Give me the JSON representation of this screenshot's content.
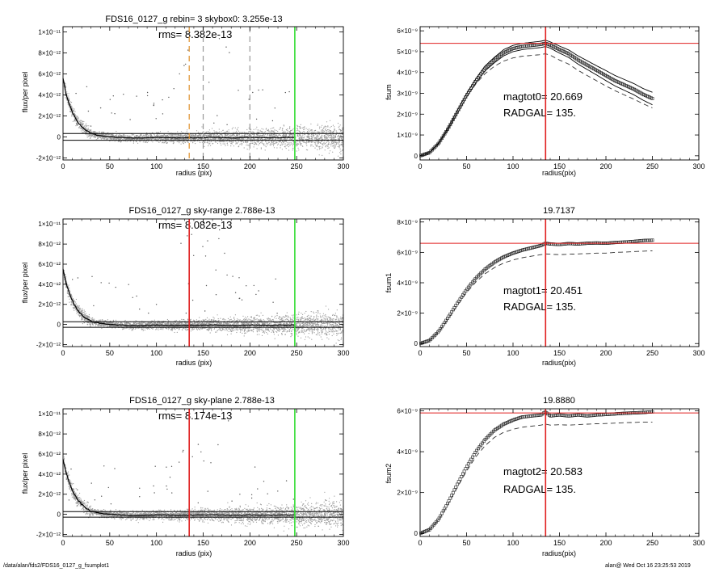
{
  "footer": {
    "path": "/data/alan/fds2/FDS16_0127_g_fsumplot1",
    "stamp": "alan@  Wed Oct 16 23:25:53 2019"
  },
  "chart_data": [
    {
      "id": "profile-1",
      "type": "scatter",
      "title": "FDS16_0127_g rebin= 3    skybox0:  3.255e-13",
      "annotation": "rms= 8.382e-13",
      "xlabel": "radius (pix)",
      "ylabel": "flux/per pixel",
      "xlim": [
        0,
        300
      ],
      "ylim": [
        -2.2e-12,
        1.05e-11
      ],
      "xticks": [
        0,
        50,
        100,
        150,
        200,
        250,
        300
      ],
      "xtick_labels": [
        "0",
        "50",
        "100",
        "150",
        "200",
        "250",
        "300"
      ],
      "yticks": [
        -2e-12,
        0,
        2e-12,
        4e-12,
        6e-12,
        8e-12,
        1e-11
      ],
      "ytick_labels": [
        "-2×10⁻¹²",
        "0",
        "2×10⁻¹²",
        "4×10⁻¹²",
        "6×10⁻¹²",
        "8×10⁻¹²",
        "1×10⁻¹¹"
      ],
      "hlines": [
        {
          "y": 3.255e-13,
          "color": "#000000"
        },
        {
          "y": -3.255e-13,
          "color": "#000000"
        }
      ],
      "vlines": [
        {
          "x": 135,
          "color": "#e0902a",
          "dash": "long"
        },
        {
          "x": 150,
          "color": "#999999",
          "dash": "long"
        },
        {
          "x": 200,
          "color": "#999999",
          "dash": "long"
        },
        {
          "x": 248,
          "color": "#33dd33",
          "dash": "none"
        }
      ],
      "profile": {
        "x": [
          0,
          3,
          6,
          9,
          12,
          15,
          18,
          21,
          24,
          27,
          30,
          35,
          40,
          45,
          50,
          60,
          70,
          80,
          90,
          100,
          120,
          140,
          160,
          180,
          200,
          220,
          248
        ],
        "y": [
          5.6e-12,
          4.2e-12,
          3.3e-12,
          2.6e-12,
          2e-12,
          1.5e-12,
          1.2e-12,
          9e-13,
          6e-13,
          5e-13,
          3e-13,
          2e-13,
          1e-13,
          5e-14,
          0,
          -5e-14,
          -1e-13,
          -1.2e-13,
          -8e-14,
          -5e-14,
          -1e-13,
          -8e-14,
          -5e-14,
          -1e-13,
          -6e-14,
          -8e-14,
          -5e-14
        ]
      },
      "scatter": {
        "count": 3500,
        "outliers": 45,
        "seed": 11,
        "color": "#9a9a9a"
      }
    },
    {
      "id": "fsum-0",
      "type": "line",
      "title": "",
      "annotation_lines": [
        "magtot0=  20.669",
        "RADGAL=    135."
      ],
      "xlabel": "radius(pix)",
      "ylabel": "fsum",
      "xlim": [
        0,
        300
      ],
      "ylim": [
        -2e-10,
        6.2e-09
      ],
      "xticks": [
        0,
        50,
        100,
        150,
        200,
        250,
        300
      ],
      "xtick_labels": [
        "0",
        "50",
        "100",
        "150",
        "200",
        "250",
        "300"
      ],
      "yticks": [
        0,
        1e-09,
        2e-09,
        3e-09,
        4e-09,
        5e-09,
        6e-09
      ],
      "ytick_labels": [
        "0",
        "1×10⁻⁹",
        "2×10⁻⁹",
        "3×10⁻⁹",
        "4×10⁻⁹",
        "5×10⁻⁹",
        "6×10⁻⁹"
      ],
      "hlines": [
        {
          "y": 5.4e-09,
          "color": "#e02020"
        }
      ],
      "vlines": [
        {
          "x": 135,
          "color": "#e02020",
          "dash": "none"
        }
      ],
      "series": [
        {
          "style": "markers",
          "x": [
            0,
            10,
            20,
            30,
            40,
            50,
            60,
            70,
            80,
            90,
            100,
            110,
            120,
            130,
            135,
            140,
            150,
            160,
            170,
            180,
            190,
            200,
            210,
            220,
            230,
            240,
            250
          ],
          "y": [
            0,
            1.5e-10,
            6e-10,
            1.3e-09,
            2.1e-09,
            2.9e-09,
            3.6e-09,
            4.2e-09,
            4.6e-09,
            4.95e-09,
            5.15e-09,
            5.25e-09,
            5.3e-09,
            5.35e-09,
            5.4e-09,
            5.32e-09,
            5.1e-09,
            4.9e-09,
            4.6e-09,
            4.35e-09,
            4.1e-09,
            3.85e-09,
            3.6e-09,
            3.4e-09,
            3.2e-09,
            2.95e-09,
            2.75e-09
          ]
        },
        {
          "style": "solid",
          "x": [
            0,
            10,
            20,
            30,
            40,
            50,
            60,
            70,
            80,
            90,
            100,
            110,
            120,
            130,
            135,
            140,
            150,
            160,
            170,
            180,
            190,
            200,
            210,
            220,
            230,
            240,
            250
          ],
          "y": [
            0,
            1.6e-10,
            6.3e-10,
            1.35e-09,
            2.17e-09,
            2.98e-09,
            3.7e-09,
            4.32e-09,
            4.73e-09,
            5.1e-09,
            5.3e-09,
            5.4e-09,
            5.45e-09,
            5.5e-09,
            5.55e-09,
            5.47e-09,
            5.27e-09,
            5.08e-09,
            4.8e-09,
            4.56e-09,
            4.32e-09,
            4.09e-09,
            3.85e-09,
            3.66e-09,
            3.47e-09,
            3.23e-09,
            3.05e-09
          ]
        },
        {
          "style": "solid",
          "x": [
            0,
            10,
            20,
            30,
            40,
            50,
            60,
            70,
            80,
            90,
            100,
            110,
            120,
            130,
            135,
            140,
            150,
            160,
            170,
            180,
            190,
            200,
            210,
            220,
            230,
            240,
            250
          ],
          "y": [
            0,
            1.4e-10,
            5.7e-10,
            1.25e-09,
            2.03e-09,
            2.82e-09,
            3.5e-09,
            4.08e-09,
            4.47e-09,
            4.8e-09,
            5e-09,
            5.1e-09,
            5.15e-09,
            5.2e-09,
            5.25e-09,
            5.17e-09,
            4.93e-09,
            4.72e-09,
            4.4e-09,
            4.14e-09,
            3.88e-09,
            3.61e-09,
            3.35e-09,
            3.14e-09,
            2.93e-09,
            2.67e-09,
            2.45e-09
          ]
        },
        {
          "style": "dashed",
          "x": [
            0,
            10,
            20,
            30,
            40,
            50,
            60,
            70,
            80,
            90,
            100,
            110,
            120,
            130,
            135,
            140,
            150,
            160,
            170,
            180,
            190,
            200,
            210,
            220,
            230,
            240,
            250
          ],
          "y": [
            0,
            1.5e-10,
            5.9e-10,
            1.28e-09,
            2.05e-09,
            2.82e-09,
            3.45e-09,
            3.95e-09,
            4.3e-09,
            4.55e-09,
            4.7e-09,
            4.78e-09,
            4.82e-09,
            4.86e-09,
            4.9e-09,
            4.83e-09,
            4.6e-09,
            4.4e-09,
            4.1e-09,
            3.85e-09,
            3.6e-09,
            3.35e-09,
            3.12e-09,
            2.92e-09,
            2.72e-09,
            2.5e-09,
            2.3e-09
          ]
        }
      ]
    },
    {
      "id": "profile-2",
      "type": "scatter",
      "title": "FDS16_0127_g sky-range  2.788e-13",
      "annotation": "rms= 8.082e-13",
      "xlabel": "radius (pix)",
      "ylabel": "flux/per pixel",
      "xlim": [
        0,
        300
      ],
      "ylim": [
        -2.2e-12,
        1.05e-11
      ],
      "xticks": [
        0,
        50,
        100,
        150,
        200,
        250,
        300
      ],
      "xtick_labels": [
        "0",
        "50",
        "100",
        "150",
        "200",
        "250",
        "300"
      ],
      "yticks": [
        -2e-12,
        0,
        2e-12,
        4e-12,
        6e-12,
        8e-12,
        1e-11
      ],
      "ytick_labels": [
        "-2×10⁻¹²",
        "0",
        "2×10⁻¹²",
        "4×10⁻¹²",
        "6×10⁻¹²",
        "8×10⁻¹²",
        "1×10⁻¹¹"
      ],
      "hlines": [
        {
          "y": 2.788e-13,
          "color": "#000000"
        },
        {
          "y": -2.788e-13,
          "color": "#000000"
        }
      ],
      "vlines": [
        {
          "x": 135,
          "color": "#e02020",
          "dash": "none"
        },
        {
          "x": 248,
          "color": "#33dd33",
          "dash": "none"
        }
      ],
      "profile": {
        "x": [
          0,
          3,
          6,
          9,
          12,
          15,
          18,
          21,
          24,
          27,
          30,
          35,
          40,
          45,
          50,
          60,
          70,
          80,
          90,
          100,
          120,
          140,
          160,
          180,
          200,
          220,
          248
        ],
        "y": [
          5.6e-12,
          4.2e-12,
          3.3e-12,
          2.6e-12,
          2e-12,
          1.5e-12,
          1.2e-12,
          9e-13,
          6e-13,
          5e-13,
          3e-13,
          2e-13,
          1e-13,
          5e-14,
          0,
          -5e-14,
          -1e-13,
          -1.2e-13,
          -8e-14,
          -5e-14,
          -1e-13,
          -8e-14,
          -5e-14,
          -1e-13,
          -6e-14,
          -8e-14,
          -5e-14
        ]
      },
      "scatter": {
        "count": 3500,
        "outliers": 45,
        "seed": 23,
        "color": "#9a9a9a"
      }
    },
    {
      "id": "fsum-1",
      "type": "line",
      "title": "19.7137",
      "annotation_lines": [
        "magtot1=  20.451",
        "RADGAL=    135."
      ],
      "xlabel": "radius(pix)",
      "ylabel": "fsum1",
      "xlim": [
        0,
        300
      ],
      "ylim": [
        -2e-10,
        8.2e-09
      ],
      "xticks": [
        0,
        50,
        100,
        150,
        200,
        250,
        300
      ],
      "xtick_labels": [
        "0",
        "50",
        "100",
        "150",
        "200",
        "250",
        "300"
      ],
      "yticks": [
        0,
        2e-09,
        4e-09,
        6e-09,
        8e-09
      ],
      "ytick_labels": [
        "0",
        "2×10⁻⁹",
        "4×10⁻⁹",
        "6×10⁻⁹",
        "8×10⁻⁹"
      ],
      "hlines": [
        {
          "y": 6.6e-09,
          "color": "#e02020"
        }
      ],
      "vlines": [
        {
          "x": 135,
          "color": "#e02020",
          "dash": "none"
        }
      ],
      "series": [
        {
          "style": "markers",
          "x": [
            0,
            10,
            20,
            30,
            40,
            50,
            60,
            70,
            80,
            90,
            100,
            110,
            120,
            130,
            135,
            140,
            150,
            160,
            170,
            180,
            190,
            200,
            210,
            220,
            230,
            240,
            250
          ],
          "y": [
            0,
            2e-10,
            8e-10,
            1.7e-09,
            2.65e-09,
            3.55e-09,
            4.3e-09,
            4.9e-09,
            5.35e-09,
            5.7e-09,
            5.95e-09,
            6.15e-09,
            6.3e-09,
            6.45e-09,
            6.6e-09,
            6.55e-09,
            6.52e-09,
            6.58e-09,
            6.55e-09,
            6.6e-09,
            6.62e-09,
            6.6e-09,
            6.65e-09,
            6.68e-09,
            6.72e-09,
            6.78e-09,
            6.8e-09
          ]
        },
        {
          "style": "dashed",
          "x": [
            0,
            10,
            20,
            30,
            40,
            50,
            60,
            70,
            80,
            90,
            100,
            110,
            120,
            130,
            135,
            140,
            150,
            160,
            170,
            180,
            190,
            200,
            210,
            220,
            230,
            240,
            250
          ],
          "y": [
            0,
            1.9e-10,
            7.6e-10,
            1.6e-09,
            2.5e-09,
            3.35e-09,
            4.05e-09,
            4.6e-09,
            5e-09,
            5.3e-09,
            5.5e-09,
            5.65e-09,
            5.75e-09,
            5.85e-09,
            5.9e-09,
            5.88e-09,
            5.85e-09,
            5.88e-09,
            5.9e-09,
            5.92e-09,
            5.95e-09,
            5.95e-09,
            6e-09,
            6.02e-09,
            6.05e-09,
            6.08e-09,
            6.1e-09
          ]
        }
      ]
    },
    {
      "id": "profile-3",
      "type": "scatter",
      "title": "FDS16_0127_g sky-plane  2.788e-13",
      "annotation": "rms= 8.174e-13",
      "xlabel": "radius (pix)",
      "ylabel": "flux/per pixel",
      "xlim": [
        0,
        300
      ],
      "ylim": [
        -2.2e-12,
        1.05e-11
      ],
      "xticks": [
        0,
        50,
        100,
        150,
        200,
        250,
        300
      ],
      "xtick_labels": [
        "0",
        "50",
        "100",
        "150",
        "200",
        "250",
        "300"
      ],
      "yticks": [
        -2e-12,
        0,
        2e-12,
        4e-12,
        6e-12,
        8e-12,
        1e-11
      ],
      "ytick_labels": [
        "-2×10⁻¹²",
        "0",
        "2×10⁻¹²",
        "4×10⁻¹²",
        "6×10⁻¹²",
        "8×10⁻¹²",
        "1×10⁻¹¹"
      ],
      "hlines": [
        {
          "y": 2.788e-13,
          "color": "#000000"
        },
        {
          "y": -2.788e-13,
          "color": "#000000"
        }
      ],
      "vlines": [
        {
          "x": 135,
          "color": "#e02020",
          "dash": "none"
        },
        {
          "x": 248,
          "color": "#33dd33",
          "dash": "none"
        }
      ],
      "profile": {
        "x": [
          0,
          3,
          6,
          9,
          12,
          15,
          18,
          21,
          24,
          27,
          30,
          35,
          40,
          45,
          50,
          60,
          70,
          80,
          90,
          100,
          120,
          140,
          160,
          180,
          200,
          220,
          248
        ],
        "y": [
          5.6e-12,
          4.2e-12,
          3.3e-12,
          2.6e-12,
          2e-12,
          1.5e-12,
          1.2e-12,
          9e-13,
          6e-13,
          5e-13,
          3e-13,
          2e-13,
          1e-13,
          5e-14,
          0,
          -5e-14,
          -1e-13,
          -1.2e-13,
          -8e-14,
          -5e-14,
          -1e-13,
          -8e-14,
          -5e-14,
          -1e-13,
          -6e-14,
          -8e-14,
          -5e-14
        ]
      },
      "scatter": {
        "count": 3500,
        "outliers": 45,
        "seed": 37,
        "color": "#9a9a9a"
      }
    },
    {
      "id": "fsum-2",
      "type": "line",
      "title": "19.8880",
      "annotation_lines": [
        "magtot2=  20.583",
        "RADGAL=    135."
      ],
      "xlabel": "radius(pix)",
      "ylabel": "fsum2",
      "xlim": [
        0,
        300
      ],
      "ylim": [
        -1.5e-10,
        6.1e-09
      ],
      "xticks": [
        0,
        50,
        100,
        150,
        200,
        250,
        300
      ],
      "xtick_labels": [
        "0",
        "50",
        "100",
        "150",
        "200",
        "250",
        "300"
      ],
      "yticks": [
        0,
        2e-09,
        4e-09,
        6e-09
      ],
      "ytick_labels": [
        "0",
        "2×10⁻⁹",
        "4×10⁻⁹",
        "6×10⁻⁹"
      ],
      "hlines": [
        {
          "y": 5.9e-09,
          "color": "#e02020"
        }
      ],
      "vlines": [
        {
          "x": 135,
          "color": "#e02020",
          "dash": "none"
        }
      ],
      "series": [
        {
          "style": "markers",
          "x": [
            0,
            10,
            20,
            30,
            40,
            50,
            60,
            70,
            80,
            90,
            100,
            110,
            120,
            130,
            135,
            140,
            150,
            160,
            170,
            180,
            190,
            200,
            210,
            220,
            230,
            240,
            250
          ],
          "y": [
            0,
            1.8e-10,
            7e-10,
            1.5e-09,
            2.4e-09,
            3.25e-09,
            4e-09,
            4.6e-09,
            5.05e-09,
            5.35e-09,
            5.55e-09,
            5.7e-09,
            5.75e-09,
            5.8e-09,
            5.95e-09,
            5.75e-09,
            5.8e-09,
            5.75e-09,
            5.8e-09,
            5.75e-09,
            5.8e-09,
            5.82e-09,
            5.85e-09,
            5.88e-09,
            5.9e-09,
            5.92e-09,
            5.95e-09
          ]
        },
        {
          "style": "dashed",
          "x": [
            0,
            10,
            20,
            30,
            40,
            50,
            60,
            70,
            80,
            90,
            100,
            110,
            120,
            130,
            135,
            140,
            150,
            160,
            170,
            180,
            190,
            200,
            210,
            220,
            230,
            240,
            250
          ],
          "y": [
            0,
            1.7e-10,
            6.6e-10,
            1.42e-09,
            2.25e-09,
            3.05e-09,
            3.75e-09,
            4.3e-09,
            4.7e-09,
            4.95e-09,
            5.1e-09,
            5.2e-09,
            5.25e-09,
            5.3e-09,
            5.35e-09,
            5.3e-09,
            5.32e-09,
            5.3e-09,
            5.33e-09,
            5.35e-09,
            5.37e-09,
            5.38e-09,
            5.4e-09,
            5.42e-09,
            5.43e-09,
            5.45e-09,
            5.45e-09
          ]
        }
      ]
    }
  ]
}
